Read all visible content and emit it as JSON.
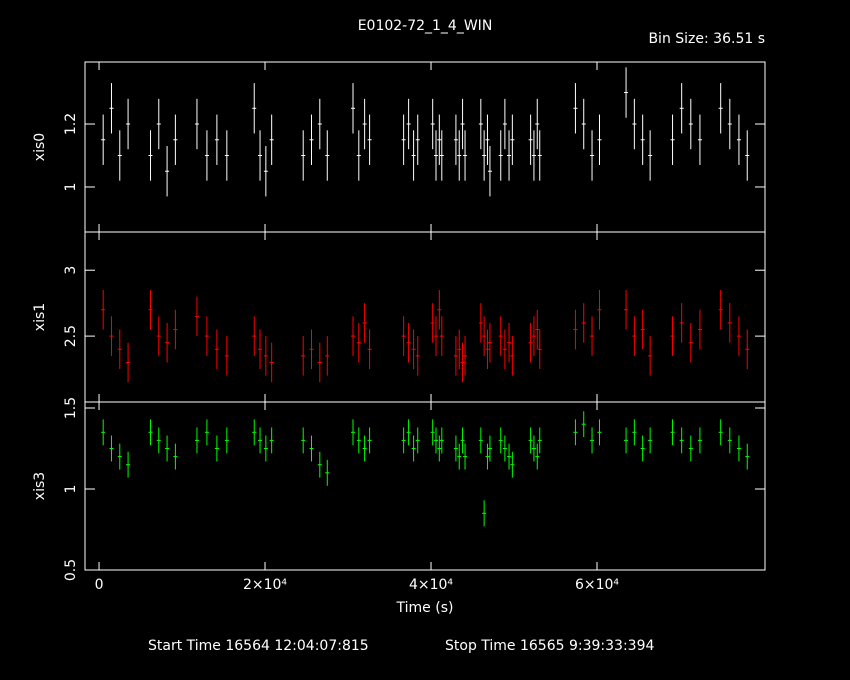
{
  "chart_data": {
    "type": "lightcurve",
    "title": "E0102-72_1_4_WIN",
    "subtitle": "Bin Size: 36.51 s",
    "xlabel": "Time (s)",
    "footer_start": "Start Time 16564 12:04:07:815",
    "footer_stop": "Stop Time 16565  9:39:33:394",
    "xlim": [
      -1690,
      80240
    ],
    "xticks": [
      0,
      {
        "value": 20000,
        "label": "2×10⁴"
      },
      {
        "value": 40000,
        "label": "4×10⁴"
      },
      {
        "value": 60000,
        "label": "6×10⁴"
      }
    ],
    "x": [
      500,
      1500,
      2500,
      3500,
      6200,
      7200,
      8200,
      9200,
      11800,
      13000,
      14200,
      15400,
      18700,
      19400,
      20100,
      20800,
      24600,
      25600,
      26600,
      27500,
      30600,
      31300,
      32000,
      32600,
      36700,
      37300,
      37900,
      38400,
      40200,
      40600,
      41000,
      41300,
      43000,
      43400,
      43800,
      44100,
      46000,
      46400,
      46800,
      47100,
      48400,
      48900,
      49400,
      49800,
      52000,
      52400,
      52800,
      53100,
      57400,
      58400,
      59400,
      60300,
      63500,
      64500,
      65500,
      66400,
      69100,
      70200,
      71300,
      72400,
      74900,
      76000,
      77100,
      78100
    ],
    "panels": [
      {
        "ylabel": "xis0",
        "color": "#ffffff",
        "ylim": [
          0.857,
          1.397
        ],
        "yticks": [
          1,
          1.2
        ],
        "error": 0.08,
        "values": [
          1.15,
          1.25,
          1.1,
          1.2,
          1.1,
          1.2,
          1.05,
          1.15,
          1.2,
          1.1,
          1.15,
          1.1,
          1.25,
          1.1,
          1.05,
          1.15,
          1.1,
          1.15,
          1.2,
          1.1,
          1.25,
          1.1,
          1.2,
          1.15,
          1.15,
          1.2,
          1.1,
          1.15,
          1.2,
          1.1,
          1.15,
          1.1,
          1.15,
          1.1,
          1.2,
          1.1,
          1.2,
          1.1,
          1.15,
          1.05,
          1.1,
          1.2,
          1.1,
          1.15,
          1.15,
          1.1,
          1.2,
          1.1,
          1.25,
          1.2,
          1.1,
          1.15,
          1.3,
          1.2,
          1.15,
          1.1,
          1.15,
          1.25,
          1.2,
          1.15,
          1.25,
          1.2,
          1.15,
          1.1
        ]
      },
      {
        "ylabel": "xis1",
        "color": "#ff0000",
        "ylim": [
          2.0,
          3.29
        ],
        "yticks": [
          2.5,
          3
        ],
        "error": 0.15,
        "values": [
          2.7,
          2.5,
          2.4,
          2.3,
          2.7,
          2.5,
          2.45,
          2.55,
          2.65,
          2.5,
          2.4,
          2.35,
          2.5,
          2.4,
          2.35,
          2.3,
          2.35,
          2.4,
          2.3,
          2.35,
          2.5,
          2.45,
          2.6,
          2.4,
          2.5,
          2.45,
          2.4,
          2.35,
          2.6,
          2.5,
          2.7,
          2.5,
          2.35,
          2.4,
          2.3,
          2.35,
          2.6,
          2.5,
          2.4,
          2.45,
          2.5,
          2.4,
          2.45,
          2.35,
          2.45,
          2.5,
          2.55,
          2.4,
          2.55,
          2.6,
          2.5,
          2.7,
          2.7,
          2.5,
          2.55,
          2.35,
          2.5,
          2.6,
          2.45,
          2.55,
          2.7,
          2.6,
          2.5,
          2.4
        ]
      },
      {
        "ylabel": "xis3",
        "color": "#00ff00",
        "ylim": [
          0.5,
          1.537
        ],
        "yticks": [
          0.5,
          1,
          1.5
        ],
        "error": 0.08,
        "values": [
          1.35,
          1.25,
          1.2,
          1.15,
          1.35,
          1.3,
          1.25,
          1.2,
          1.3,
          1.35,
          1.25,
          1.3,
          1.35,
          1.3,
          1.25,
          1.3,
          1.3,
          1.25,
          1.15,
          1.1,
          1.35,
          1.3,
          1.25,
          1.3,
          1.3,
          1.35,
          1.25,
          1.3,
          1.35,
          1.3,
          1.25,
          1.3,
          1.25,
          1.2,
          1.3,
          1.2,
          1.3,
          0.85,
          1.2,
          1.25,
          1.3,
          1.25,
          1.2,
          1.15,
          1.3,
          1.25,
          1.2,
          1.3,
          1.35,
          1.4,
          1.3,
          1.35,
          1.3,
          1.35,
          1.25,
          1.3,
          1.35,
          1.3,
          1.25,
          1.3,
          1.35,
          1.3,
          1.25,
          1.2
        ]
      }
    ]
  }
}
